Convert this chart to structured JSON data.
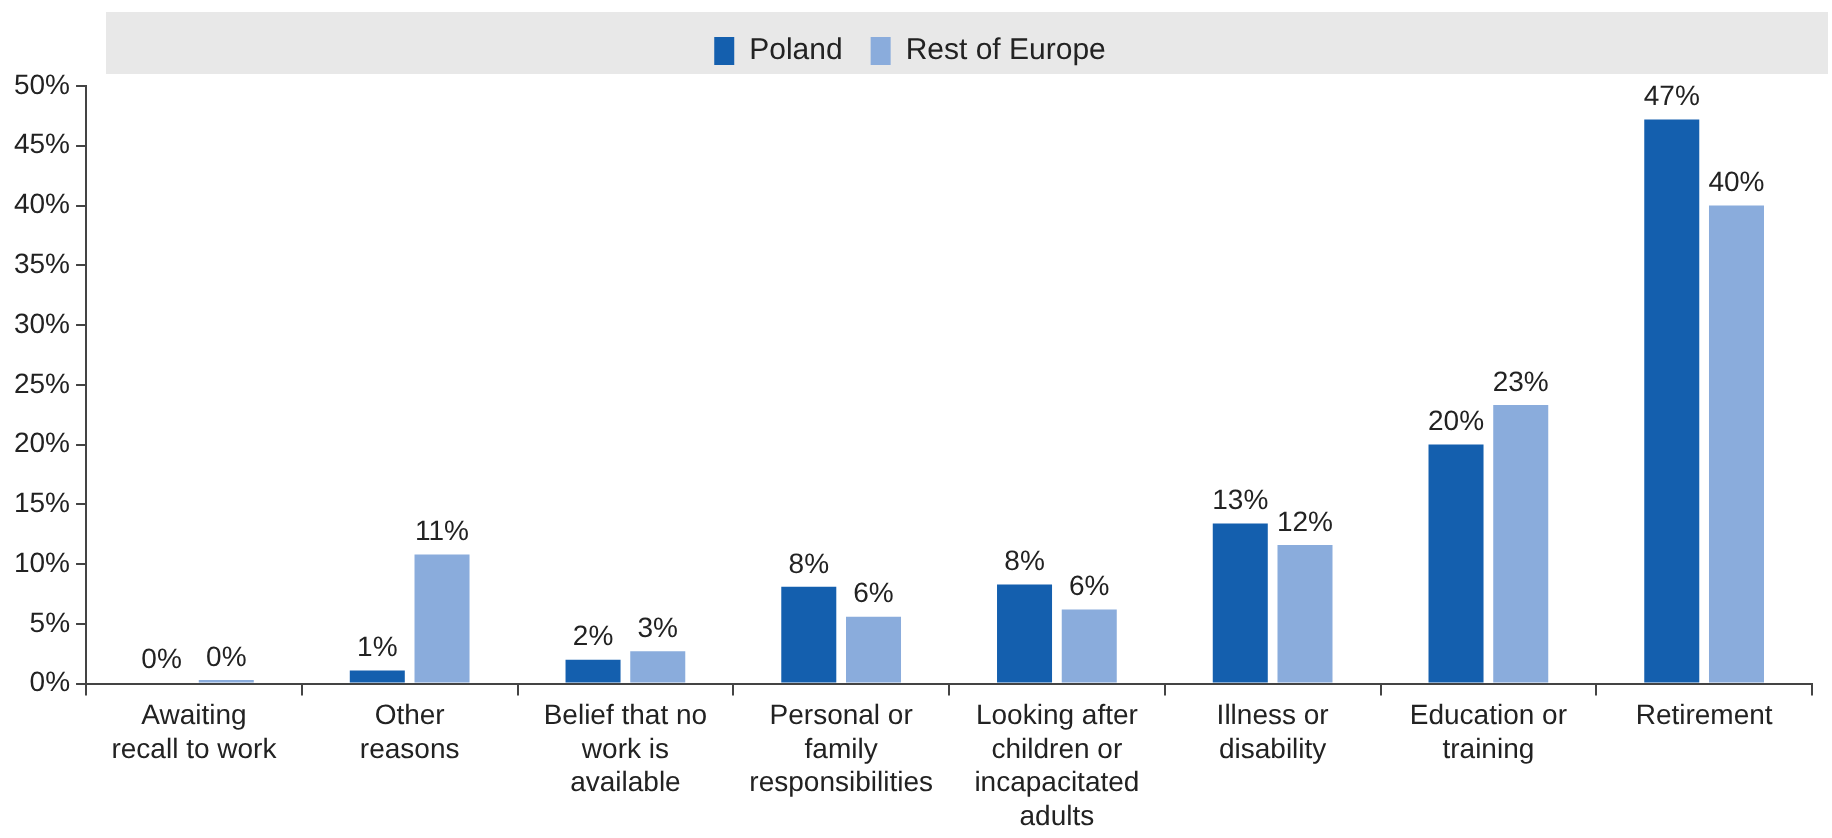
{
  "chart_data": {
    "type": "bar",
    "categories": [
      "Awaiting recall to work",
      "Other reasons",
      "Belief that no work is available",
      "Personal or family responsibilities",
      "Looking after children or incapacitated adults",
      "Illness or disability",
      "Education or training",
      "Retirement"
    ],
    "series": [
      {
        "name": "Poland",
        "color": "#145fae",
        "values": [
          0.1,
          1.1,
          2,
          8.1,
          8.3,
          13.4,
          20,
          47.2
        ],
        "value_labels": [
          "0%",
          "1%",
          "2%",
          "8%",
          "8%",
          "13%",
          "20%",
          "47%"
        ]
      },
      {
        "name": "Rest of Europe",
        "color": "#8aacdc",
        "values": [
          0.3,
          10.8,
          2.7,
          5.6,
          6.2,
          11.6,
          23.3,
          40
        ],
        "value_labels": [
          "0%",
          "11%",
          "3%",
          "6%",
          "6%",
          "12%",
          "23%",
          "40%"
        ]
      }
    ],
    "ylim": [
      0,
      50
    ],
    "yticks": [
      {
        "value": 0,
        "label": "0%"
      },
      {
        "value": 5,
        "label": "5%"
      },
      {
        "value": 10,
        "label": "10%"
      },
      {
        "value": 15,
        "label": "15%"
      },
      {
        "value": 20,
        "label": "20%"
      },
      {
        "value": 25,
        "label": "25%"
      },
      {
        "value": 30,
        "label": "30%"
      },
      {
        "value": 35,
        "label": "35%"
      },
      {
        "value": 40,
        "label": "40%"
      },
      {
        "value": 45,
        "label": "45%"
      },
      {
        "value": 50,
        "label": "50%"
      }
    ],
    "grid": false,
    "legend": "top"
  }
}
